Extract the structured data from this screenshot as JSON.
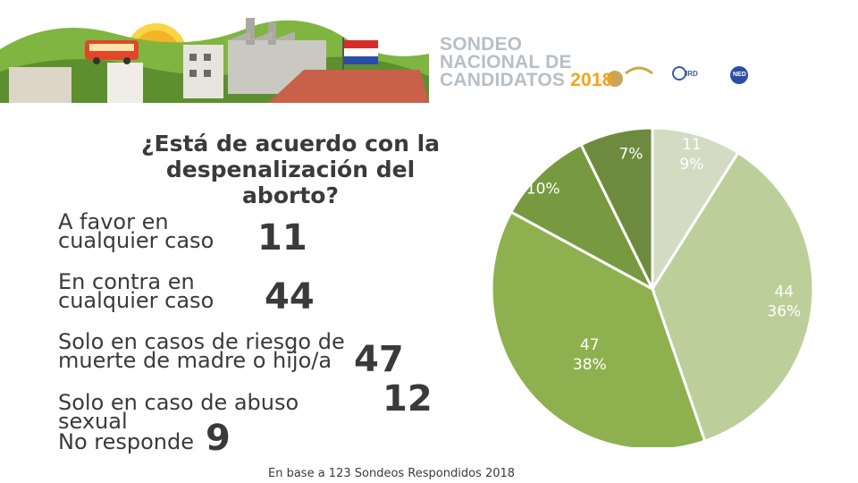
{
  "banner": {
    "title_lines": [
      "SONDEO",
      "NACIONAL DE",
      "CANDIDATOS"
    ],
    "year": "2018",
    "logo_ird": "IRD",
    "logo_ned": "NED"
  },
  "question": "¿Está de acuerdo con la despenalización del aborto?",
  "footnote": "En base a 123 Sondeos Respondidos 2018",
  "chart_data": {
    "type": "pie",
    "title": "¿Está de acuerdo con la despenalización del aborto?",
    "total": 123,
    "slices": [
      {
        "name": "A favor en cualquier caso",
        "value": 11,
        "percent": "9%",
        "color": "#d3dcc2"
      },
      {
        "name": "En contra en cualquier caso",
        "value": 44,
        "percent": "36%",
        "color": "#bccf9a"
      },
      {
        "name": "Solo en casos de riesgo de muerte de madre o hijo/a",
        "value": 47,
        "percent": "38%",
        "color": "#8fb04e"
      },
      {
        "name": "Solo en caso de abuso sexual",
        "value": 12,
        "percent": "10%",
        "color": "#779a40"
      },
      {
        "name": "No responde",
        "value": 9,
        "percent": "7%",
        "color": "#6e8a3e"
      }
    ]
  },
  "colors": {
    "text": "#3a3a3a",
    "label_light": "#ffffff",
    "label_dark": "#3a3a3a"
  }
}
